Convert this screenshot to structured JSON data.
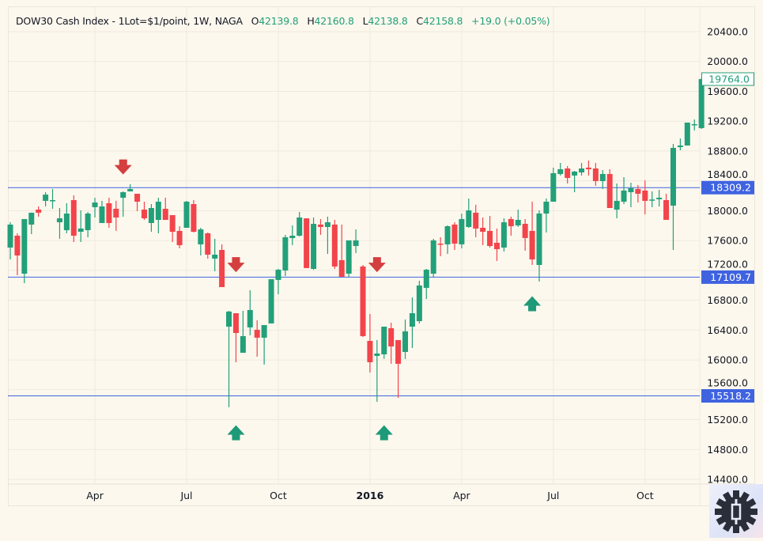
{
  "header": {
    "symbol": "DOW30 Cash Index - 1Lot=$1/point, 1W, NAGA",
    "open_label": "O",
    "open": "42139.8",
    "high_label": "H",
    "high": "42160.8",
    "low_label": "L",
    "low": "42138.8",
    "close_label": "C",
    "close": "42158.8",
    "change": "+19.0 (+0.05%)"
  },
  "colors": {
    "up": "#22a079",
    "down": "#f2444b",
    "level": "#3f63e0",
    "arrow_down": "#d43f3f",
    "arrow_up": "#1f9a78",
    "background": "#fdf8ee"
  },
  "chart_data": {
    "type": "candlestick",
    "interval": "1W",
    "ylim": [
      14400,
      20400
    ],
    "grid": true,
    "y_ticks": [
      "20400.0",
      "20000.0",
      "19600.0",
      "19200.0",
      "18800.0",
      "18400.0",
      "18000.0",
      "17600.0",
      "17200.0",
      "16800.0",
      "16400.0",
      "16000.0",
      "15600.0",
      "15200.0",
      "14800.0",
      "14400.0"
    ],
    "x_ticks": [
      {
        "label": "Apr",
        "index": 12,
        "bold": false
      },
      {
        "label": "Jul",
        "index": 25,
        "bold": false
      },
      {
        "label": "Oct",
        "index": 38,
        "bold": false
      },
      {
        "label": "2016",
        "index": 51,
        "bold": true
      },
      {
        "label": "Apr",
        "index": 64,
        "bold": false
      },
      {
        "label": "Jul",
        "index": 77,
        "bold": false
      },
      {
        "label": "Oct",
        "index": 90,
        "bold": false
      }
    ],
    "current_price": "19764.0",
    "levels": [
      {
        "value": 18309.2,
        "label": "18309.2"
      },
      {
        "value": 17109.7,
        "label": "17109.7"
      },
      {
        "value": 15518.2,
        "label": "15518.2"
      }
    ],
    "signals": [
      {
        "type": "down",
        "index": 16,
        "price": 18560
      },
      {
        "type": "down",
        "index": 32,
        "price": 17250
      },
      {
        "type": "down",
        "index": 52,
        "price": 17250
      },
      {
        "type": "up",
        "index": 32,
        "price": 15050
      },
      {
        "type": "up",
        "index": 53,
        "price": 15050
      },
      {
        "type": "up",
        "index": 74,
        "price": 16780
      }
    ],
    "ohlc": [
      [
        17506,
        17845,
        17347,
        17814
      ],
      [
        17665,
        17697,
        17135,
        17400
      ],
      [
        17156,
        17888,
        17029,
        17888
      ],
      [
        17814,
        17973,
        17686,
        17973
      ],
      [
        18015,
        18057,
        17920,
        17973
      ],
      [
        18132,
        18248,
        18057,
        18216
      ],
      [
        18132,
        18291,
        18026,
        18142
      ],
      [
        17845,
        18036,
        17623,
        17898
      ],
      [
        17739,
        18100,
        17697,
        17962
      ],
      [
        18142,
        18206,
        17580,
        17665
      ],
      [
        17718,
        18004,
        17580,
        17761
      ],
      [
        17739,
        17983,
        17644,
        17962
      ],
      [
        18047,
        18174,
        17909,
        18110
      ],
      [
        17835,
        18132,
        17835,
        18057
      ],
      [
        18100,
        18174,
        17771,
        17835
      ],
      [
        18026,
        18132,
        17729,
        17909
      ],
      [
        18174,
        18259,
        17920,
        18248
      ],
      [
        18259,
        18354,
        18259,
        18291
      ],
      [
        18227,
        18227,
        17994,
        18121
      ],
      [
        18015,
        18121,
        17877,
        17898
      ],
      [
        17835,
        18089,
        17718,
        18036
      ],
      [
        17877,
        18174,
        17697,
        18121
      ],
      [
        18026,
        18174,
        17877,
        17877
      ],
      [
        17941,
        17941,
        17580,
        17718
      ],
      [
        17729,
        17792,
        17496,
        17538
      ],
      [
        17771,
        18132,
        17771,
        18121
      ],
      [
        18089,
        18142,
        17708,
        17718
      ],
      [
        17549,
        17771,
        17400,
        17750
      ],
      [
        17697,
        17708,
        17358,
        17411
      ],
      [
        17358,
        17623,
        17188,
        17411
      ],
      [
        17474,
        17549,
        16976,
        16976
      ],
      [
        16446,
        16658,
        15365,
        16648
      ],
      [
        16626,
        16626,
        15969,
        16361
      ],
      [
        16096,
        16658,
        16096,
        16319
      ],
      [
        16436,
        16934,
        16330,
        16669
      ],
      [
        16404,
        16531,
        16043,
        16298
      ],
      [
        16298,
        16467,
        15937,
        16467
      ],
      [
        16489,
        17082,
        16489,
        17082
      ],
      [
        17072,
        17220,
        16881,
        17209
      ],
      [
        17199,
        17676,
        17125,
        17644
      ],
      [
        17633,
        17803,
        17538,
        17665
      ],
      [
        17665,
        17983,
        17655,
        17909
      ],
      [
        17898,
        17898,
        17231,
        17231
      ],
      [
        17220,
        17909,
        17209,
        17824
      ],
      [
        17814,
        17888,
        17676,
        17782
      ],
      [
        17782,
        17920,
        17421,
        17845
      ],
      [
        17814,
        17877,
        17220,
        17252
      ],
      [
        17337,
        17814,
        17114,
        17114
      ],
      [
        17156,
        17602,
        17114,
        17602
      ],
      [
        17527,
        17750,
        17432,
        17602
      ],
      [
        17252,
        17273,
        16308,
        16319
      ],
      [
        16255,
        16616,
        15831,
        15969
      ],
      [
        16054,
        16266,
        15439,
        16086
      ],
      [
        16075,
        16446,
        16015,
        16446
      ],
      [
        16425,
        16499,
        15948,
        16181
      ],
      [
        16266,
        16266,
        15492,
        15948
      ],
      [
        16107,
        16542,
        16012,
        16383
      ],
      [
        16446,
        16838,
        16160,
        16626
      ],
      [
        16520,
        17061,
        16489,
        16998
      ],
      [
        16966,
        17220,
        16817,
        17209
      ],
      [
        17156,
        17623,
        17114,
        17602
      ],
      [
        17559,
        17644,
        17390,
        17549
      ],
      [
        17549,
        17803,
        17421,
        17792
      ],
      [
        17814,
        17845,
        17474,
        17559
      ],
      [
        17549,
        17962,
        17496,
        17888
      ],
      [
        17782,
        18163,
        17771,
        18004
      ],
      [
        17973,
        18079,
        17644,
        17761
      ],
      [
        17771,
        17909,
        17538,
        17718
      ],
      [
        17729,
        17930,
        17506,
        17527
      ],
      [
        17570,
        17761,
        17326,
        17485
      ],
      [
        17506,
        17898,
        17453,
        17845
      ],
      [
        17888,
        17920,
        17665,
        17792
      ],
      [
        17803,
        18015,
        17782,
        17877
      ],
      [
        17824,
        17888,
        17464,
        17634
      ],
      [
        17729,
        18121,
        17273,
        17347
      ],
      [
        17273,
        18004,
        17050,
        17962
      ],
      [
        17962,
        18163,
        17708,
        18121
      ],
      [
        18121,
        18577,
        18121,
        18503
      ],
      [
        18492,
        18640,
        18471,
        18556
      ],
      [
        18566,
        18598,
        18365,
        18439
      ],
      [
        18471,
        18534,
        18248,
        18524
      ],
      [
        18513,
        18640,
        18471,
        18566
      ],
      [
        18577,
        18672,
        18471,
        18556
      ],
      [
        18566,
        18640,
        18333,
        18397
      ],
      [
        18397,
        18545,
        18291,
        18492
      ],
      [
        18492,
        18556,
        18036,
        18036
      ],
      [
        18015,
        18365,
        17898,
        18132
      ],
      [
        18121,
        18450,
        18089,
        18270
      ],
      [
        18248,
        18375,
        18047,
        18301
      ],
      [
        18291,
        18344,
        18110,
        18227
      ],
      [
        18270,
        18406,
        17951,
        18132
      ],
      [
        18142,
        18259,
        18047,
        18150
      ],
      [
        18153,
        18280,
        18057,
        18174
      ],
      [
        18142,
        18227,
        17877,
        17877
      ],
      [
        18068,
        18895,
        17474,
        18842
      ],
      [
        18852,
        18969,
        18810,
        18874
      ],
      [
        18874,
        19181,
        18874,
        19181
      ],
      [
        19149,
        19223,
        19075,
        19160
      ],
      [
        19107,
        19775,
        19096,
        19764
      ]
    ]
  }
}
